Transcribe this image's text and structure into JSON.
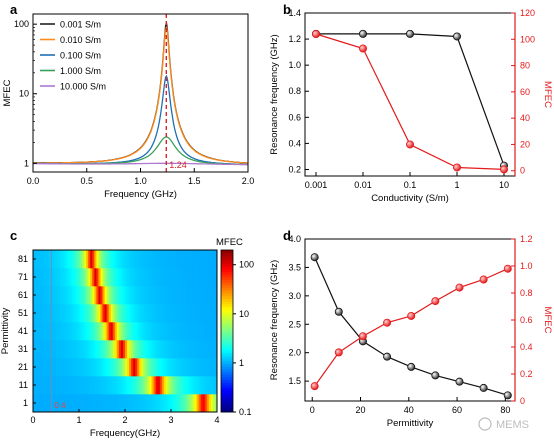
{
  "chart_data": [
    {
      "panel": "a",
      "type": "line",
      "xlabel": "Frequency (GHz)",
      "ylabel": "MFEC",
      "xlim": [
        0,
        2.0
      ],
      "ylim": [
        0.75,
        140
      ],
      "yscale": "log",
      "xticks": [
        "0.0",
        "0.5",
        "1.0",
        "1.5",
        "2.0"
      ],
      "yticks": [
        {
          "value": 1,
          "label": "1"
        },
        {
          "value": 10,
          "label": "10"
        },
        {
          "value": 100,
          "label": "100"
        }
      ],
      "legend_position": "upper-left",
      "annotation": {
        "x": 1.24,
        "label": "1.24",
        "style": "red dashed vertical line"
      },
      "series": [
        {
          "name": "0.001 S/m",
          "color": "#222222",
          "peak": 105,
          "width": 0.02
        },
        {
          "name": "0.010 S/m",
          "color": "#ff8c1a",
          "peak": 92,
          "width": 0.021
        },
        {
          "name": "0.100 S/m",
          "color": "#1f6fb4",
          "peak": 18,
          "width": 0.03
        },
        {
          "name": "1.000 S/m",
          "color": "#3aa05a",
          "peak": 2.4,
          "width": 0.09
        },
        {
          "name": "10.000 S/m",
          "color": "#b07ad0",
          "peak": 1.0,
          "width": 0.5
        }
      ]
    },
    {
      "panel": "b",
      "type": "line",
      "xlabel": "Conductivity (S/m)",
      "ylabel": "Resonance frequency (GHz)",
      "ylabel_right": "MFEC",
      "xscale": "log",
      "x": [
        0.001,
        0.01,
        0.1,
        1,
        10
      ],
      "xticks": [
        "0.001",
        "0.01",
        "0.1",
        "1",
        "10"
      ],
      "ylim": [
        0.15,
        1.4
      ],
      "yticks": [
        "0.2",
        "0.4",
        "0.6",
        "0.8",
        "1.0",
        "1.2",
        "1.4"
      ],
      "ylim_right": [
        -4,
        120
      ],
      "yticks_right": [
        "0",
        "20",
        "40",
        "60",
        "80",
        "100",
        "120"
      ],
      "series": [
        {
          "axis": "left",
          "color": "#111111",
          "marker": "circle",
          "values": [
            1.24,
            1.24,
            1.24,
            1.22,
            0.23
          ]
        },
        {
          "axis": "right",
          "color": "#e31a1c",
          "marker": "circle",
          "values": [
            104,
            93,
            20,
            2.5,
            1
          ]
        }
      ]
    },
    {
      "panel": "c",
      "type": "heatmap",
      "xlabel": "Frequency(GHz)",
      "ylabel": "Permittivity",
      "colorbar_title": "MFEC",
      "colorbar_ticks": [
        "100",
        "10",
        "1",
        "0.1"
      ],
      "xticks": [
        "0",
        "1",
        "2",
        "3",
        "4"
      ],
      "xlim": [
        0,
        4
      ],
      "rows": [
        "1",
        "11",
        "21",
        "31",
        "41",
        "51",
        "61",
        "71",
        "81"
      ],
      "peak_frequency": [
        3.7,
        2.72,
        2.2,
        1.93,
        1.7,
        1.57,
        1.45,
        1.36,
        1.27
      ],
      "peak_values": [
        80,
        100,
        100,
        100,
        100,
        100,
        100,
        100,
        100
      ],
      "annotation": {
        "label": "0.4",
        "x": 0.4
      }
    },
    {
      "panel": "d",
      "type": "line",
      "xlabel": "Permittivity",
      "ylabel": "Resonance frequency (GHz)",
      "ylabel_right": "MFEC",
      "x": [
        1,
        11,
        21,
        31,
        41,
        51,
        61,
        71,
        81
      ],
      "xlim": [
        -3,
        84
      ],
      "xticks": [
        "0",
        "20",
        "40",
        "60",
        "80"
      ],
      "ylim": [
        1.15,
        4.0
      ],
      "yticks": [
        "1.5",
        "2.0",
        "2.5",
        "3.0",
        "3.5",
        "4.0"
      ],
      "ylim_right": [
        0,
        1.2
      ],
      "yticks_right": [
        "0",
        "0.2",
        "0.4",
        "0.6",
        "0.8",
        "1.0",
        "1.2"
      ],
      "series": [
        {
          "axis": "left",
          "color": "#111111",
          "marker": "circle",
          "values": [
            3.68,
            2.72,
            2.2,
            1.93,
            1.75,
            1.6,
            1.49,
            1.38,
            1.25
          ]
        },
        {
          "axis": "right",
          "color": "#e31a1c",
          "marker": "circle",
          "values": [
            0.11,
            0.36,
            0.48,
            0.58,
            0.63,
            0.74,
            0.84,
            0.9,
            0.98
          ]
        }
      ]
    }
  ],
  "panel_labels": [
    "a",
    "b",
    "c",
    "d"
  ],
  "watermark": "MEMS"
}
